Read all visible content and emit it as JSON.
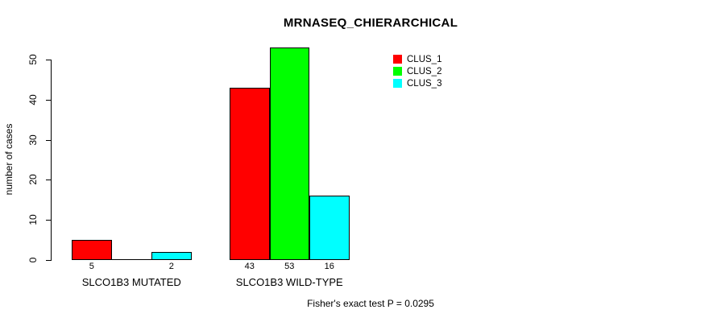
{
  "chart_data": {
    "type": "bar",
    "title": "MRNASEQ_CHIERARCHICAL",
    "ylabel": "number of cases",
    "xlabel": "",
    "categories": [
      "SLCO1B3 MUTATED",
      "SLCO1B3 WILD-TYPE"
    ],
    "series": [
      {
        "name": "CLUS_1",
        "color": "#ff0000",
        "values": [
          5,
          43
        ]
      },
      {
        "name": "CLUS_2",
        "color": "#00ff00",
        "values": [
          0,
          53
        ]
      },
      {
        "name": "CLUS_3",
        "color": "#00ffff",
        "values": [
          2,
          16
        ]
      }
    ],
    "yticks": [
      0,
      10,
      20,
      30,
      40,
      50
    ],
    "ylim": [
      0,
      53
    ],
    "grid": false,
    "bar_value_labels": [
      "5",
      "",
      "2",
      "43",
      "53",
      "16"
    ],
    "legend_position": "top-right-inside",
    "annotation": "Fisher's exact test P = 0.0295"
  },
  "colors": {
    "background": "#ffffff",
    "axis": "#000000",
    "bar_border": "#000000",
    "text": "#000000"
  }
}
